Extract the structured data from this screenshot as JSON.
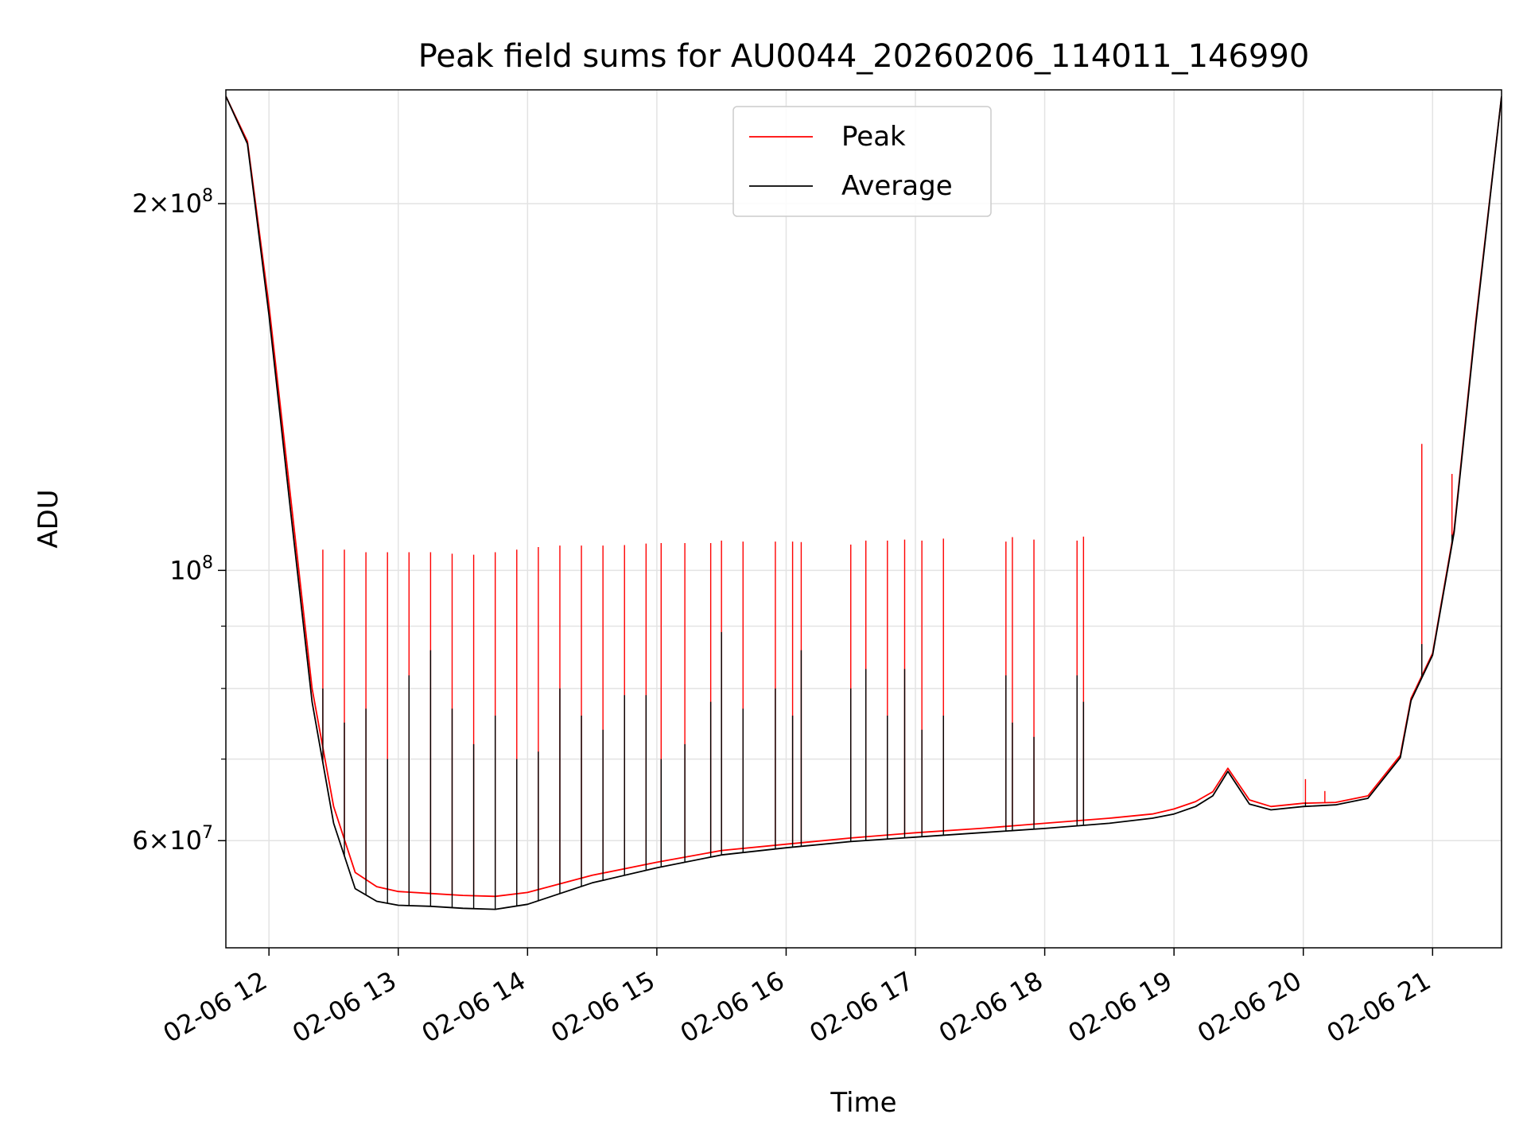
{
  "chart_data": {
    "type": "line",
    "title": "Peak field sums for AU0044_20260206_114011_146990",
    "xlabel": "Time",
    "ylabel": "ADU",
    "yscale": "log",
    "ylim": [
      49000000,
      248000000
    ],
    "xlim": [
      "02-06 11:40",
      "02-06 21:32"
    ],
    "grid": true,
    "legend_position": "upper center",
    "x_ticks": [
      "02-06 12",
      "02-06 13",
      "02-06 14",
      "02-06 15",
      "02-06 16",
      "02-06 17",
      "02-06 18",
      "02-06 19",
      "02-06 20",
      "02-06 21"
    ],
    "y_ticks": [
      {
        "value": 60000000,
        "mantissa": "6",
        "exponent": "7"
      },
      {
        "value": 100000000,
        "mantissa": "",
        "exponent": "8"
      },
      {
        "value": 200000000,
        "mantissa": "2",
        "exponent": "8"
      }
    ],
    "y_minor_ticks": [
      70000000,
      80000000,
      90000000
    ],
    "times_label": "hh:mm on 02-06",
    "times": [
      "11:40",
      "11:50",
      "12:00",
      "12:10",
      "12:20",
      "12:30",
      "12:40",
      "12:50",
      "13:00",
      "13:15",
      "13:30",
      "13:45",
      "14:00",
      "14:30",
      "15:00",
      "15:30",
      "16:00",
      "16:30",
      "17:00",
      "17:30",
      "18:00",
      "18:30",
      "18:50",
      "19:00",
      "19:10",
      "19:18",
      "19:25",
      "19:35",
      "19:45",
      "20:00",
      "20:15",
      "20:30",
      "20:45",
      "20:50",
      "21:00",
      "21:10",
      "21:20",
      "21:32"
    ],
    "series": [
      {
        "name": "Peak",
        "color": "#ff0000",
        "values": [
          245000000,
          225000000,
          165000000,
          115000000,
          80000000,
          64000000,
          56500000,
          55000000,
          54500000,
          54300000,
          54100000,
          54000000,
          54400000,
          56200000,
          57600000,
          58900000,
          59600000,
          60300000,
          60900000,
          61400000,
          62000000,
          62600000,
          63100000,
          63700000,
          64600000,
          65800000,
          68800000,
          64800000,
          64000000,
          64400000,
          64500000,
          65300000,
          70500000,
          78500000,
          85500000,
          108000000,
          160000000,
          245000000
        ],
        "spikes": [
          {
            "t": "12:25",
            "v": 104000000
          },
          {
            "t": "12:35",
            "v": 104000000
          },
          {
            "t": "12:45",
            "v": 103500000
          },
          {
            "t": "12:55",
            "v": 103500000
          },
          {
            "t": "13:05",
            "v": 103500000
          },
          {
            "t": "13:15",
            "v": 103500000
          },
          {
            "t": "13:25",
            "v": 103200000
          },
          {
            "t": "13:35",
            "v": 103000000
          },
          {
            "t": "13:45",
            "v": 103500000
          },
          {
            "t": "13:55",
            "v": 104000000
          },
          {
            "t": "14:05",
            "v": 104500000
          },
          {
            "t": "14:15",
            "v": 104800000
          },
          {
            "t": "14:25",
            "v": 104800000
          },
          {
            "t": "14:35",
            "v": 104800000
          },
          {
            "t": "14:45",
            "v": 104900000
          },
          {
            "t": "14:55",
            "v": 105200000
          },
          {
            "t": "15:02",
            "v": 105300000
          },
          {
            "t": "15:13",
            "v": 105300000
          },
          {
            "t": "15:25",
            "v": 105300000
          },
          {
            "t": "15:30",
            "v": 105800000
          },
          {
            "t": "15:40",
            "v": 105600000
          },
          {
            "t": "15:55",
            "v": 105600000
          },
          {
            "t": "16:03",
            "v": 105600000
          },
          {
            "t": "16:07",
            "v": 105500000
          },
          {
            "t": "16:30",
            "v": 105000000
          },
          {
            "t": "16:37",
            "v": 105800000
          },
          {
            "t": "16:47",
            "v": 105800000
          },
          {
            "t": "16:55",
            "v": 106000000
          },
          {
            "t": "17:03",
            "v": 105800000
          },
          {
            "t": "17:13",
            "v": 106200000
          },
          {
            "t": "17:42",
            "v": 105600000
          },
          {
            "t": "17:45",
            "v": 106500000
          },
          {
            "t": "17:55",
            "v": 106000000
          },
          {
            "t": "18:15",
            "v": 105800000
          },
          {
            "t": "18:18",
            "v": 106600000
          },
          {
            "t": "20:01",
            "v": 67400000
          },
          {
            "t": "20:10",
            "v": 65900000
          },
          {
            "t": "20:55",
            "v": 127000000
          },
          {
            "t": "21:09",
            "v": 120000000
          }
        ]
      },
      {
        "name": "Average",
        "color": "#000000",
        "values": [
          245000000,
          224000000,
          162000000,
          112000000,
          78000000,
          62000000,
          54800000,
          53500000,
          53100000,
          53000000,
          52800000,
          52700000,
          53200000,
          55400000,
          57000000,
          58400000,
          59200000,
          59900000,
          60400000,
          60900000,
          61400000,
          62000000,
          62600000,
          63100000,
          64000000,
          65300000,
          68400000,
          64300000,
          63600000,
          64000000,
          64200000,
          65000000,
          70200000,
          78200000,
          85200000,
          107500000,
          159000000,
          245000000
        ],
        "spikes": [
          {
            "t": "12:25",
            "v": 80000000
          },
          {
            "t": "12:35",
            "v": 75000000
          },
          {
            "t": "12:45",
            "v": 77000000
          },
          {
            "t": "12:55",
            "v": 70000000
          },
          {
            "t": "13:05",
            "v": 82000000
          },
          {
            "t": "13:15",
            "v": 86000000
          },
          {
            "t": "13:25",
            "v": 77000000
          },
          {
            "t": "13:35",
            "v": 72000000
          },
          {
            "t": "13:45",
            "v": 76000000
          },
          {
            "t": "13:55",
            "v": 70000000
          },
          {
            "t": "14:05",
            "v": 71000000
          },
          {
            "t": "14:15",
            "v": 80000000
          },
          {
            "t": "14:25",
            "v": 76000000
          },
          {
            "t": "14:35",
            "v": 74000000
          },
          {
            "t": "14:45",
            "v": 79000000
          },
          {
            "t": "14:55",
            "v": 79000000
          },
          {
            "t": "15:02",
            "v": 70000000
          },
          {
            "t": "15:13",
            "v": 72000000
          },
          {
            "t": "15:25",
            "v": 78000000
          },
          {
            "t": "15:30",
            "v": 89000000
          },
          {
            "t": "15:40",
            "v": 77000000
          },
          {
            "t": "15:55",
            "v": 80000000
          },
          {
            "t": "16:03",
            "v": 76000000
          },
          {
            "t": "16:07",
            "v": 86000000
          },
          {
            "t": "16:30",
            "v": 80000000
          },
          {
            "t": "16:37",
            "v": 83000000
          },
          {
            "t": "16:47",
            "v": 76000000
          },
          {
            "t": "16:55",
            "v": 83000000
          },
          {
            "t": "17:03",
            "v": 74000000
          },
          {
            "t": "17:13",
            "v": 76000000
          },
          {
            "t": "17:42",
            "v": 82000000
          },
          {
            "t": "17:45",
            "v": 75000000
          },
          {
            "t": "17:55",
            "v": 73000000
          },
          {
            "t": "18:15",
            "v": 82000000
          },
          {
            "t": "18:18",
            "v": 78000000
          },
          {
            "t": "20:01",
            "v": 64500000
          },
          {
            "t": "20:10",
            "v": 64200000
          },
          {
            "t": "20:55",
            "v": 87000000
          },
          {
            "t": "21:09",
            "v": 107000000
          }
        ]
      }
    ]
  }
}
